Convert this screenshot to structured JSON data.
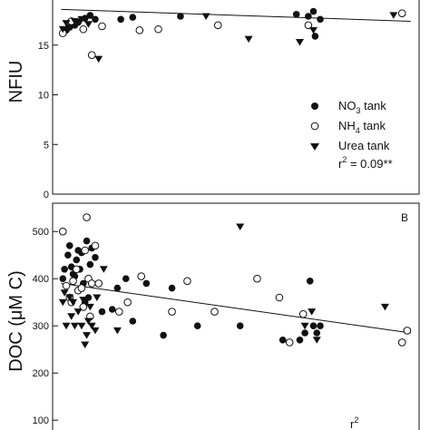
{
  "chart_data": [
    {
      "type": "scatter",
      "panel_label": "",
      "ylabel": "NFIU",
      "ylim": [
        0,
        20
      ],
      "yticks": [
        "0",
        "5",
        "10",
        "15"
      ],
      "series": [
        {
          "name": "NO3 tank",
          "name_main": "NO",
          "name_sub": "3",
          "name_rest": " tank",
          "marker": "filled-circle",
          "points": [
            [
              0.3,
              16.5
            ],
            [
              0.5,
              16.8
            ],
            [
              0.8,
              17.0
            ],
            [
              1.0,
              17.3
            ],
            [
              1.4,
              17.7
            ],
            [
              1.7,
              18.0
            ],
            [
              2.0,
              17.6
            ],
            [
              3.5,
              17.6
            ],
            [
              4.2,
              17.8
            ],
            [
              7.0,
              17.9
            ],
            [
              13.8,
              18.1
            ],
            [
              14.5,
              17.9
            ],
            [
              14.8,
              18.4
            ],
            [
              15.2,
              17.6
            ],
            [
              14.9,
              15.9
            ]
          ]
        },
        {
          "name": "NH4 tank",
          "name_main": "NH",
          "name_sub": "4",
          "name_rest": " tank",
          "marker": "open-circle",
          "points": [
            [
              0.1,
              16.2
            ],
            [
              0.6,
              17.4
            ],
            [
              1.3,
              16.6
            ],
            [
              1.8,
              14.0
            ],
            [
              2.4,
              16.9
            ],
            [
              4.6,
              16.5
            ],
            [
              5.7,
              16.6
            ],
            [
              9.2,
              17.0
            ],
            [
              14.5,
              17.0
            ],
            [
              20.0,
              18.2
            ]
          ]
        },
        {
          "name": "Urea tank",
          "name_main": "Urea tank",
          "name_sub": "",
          "name_rest": "",
          "marker": "triangle",
          "points": [
            [
              0.1,
              16.6
            ],
            [
              0.3,
              17.2
            ],
            [
              0.8,
              17.4
            ],
            [
              1.2,
              17.6
            ],
            [
              1.6,
              17.1
            ],
            [
              2.2,
              13.6
            ],
            [
              8.5,
              17.9
            ],
            [
              11.0,
              15.6
            ],
            [
              14.0,
              15.3
            ],
            [
              14.8,
              16.5
            ],
            [
              19.5,
              18.0
            ]
          ]
        }
      ],
      "regression": {
        "x": [
          0,
          20.5
        ],
        "y": [
          18.6,
          17.4
        ]
      },
      "annotation": {
        "main": "r",
        "sup": "2",
        "rest": " = 0.09**"
      }
    },
    {
      "type": "scatter",
      "panel_label": "B",
      "ylabel": "DOC (μM C)",
      "ylim": [
        60,
        560
      ],
      "yticks": [
        "100",
        "200",
        "300",
        "400",
        "500"
      ],
      "series": [
        {
          "name": "NO3 tank",
          "marker": "filled-circle",
          "points": [
            [
              0.1,
              400
            ],
            [
              0.2,
              420
            ],
            [
              0.4,
              450
            ],
            [
              0.5,
              470
            ],
            [
              0.6,
              425
            ],
            [
              0.7,
              410
            ],
            [
              0.8,
              405
            ],
            [
              0.9,
              440
            ],
            [
              1.0,
              460
            ],
            [
              1.1,
              420
            ],
            [
              1.2,
              455
            ],
            [
              1.3,
              390
            ],
            [
              1.4,
              350
            ],
            [
              1.5,
              480
            ],
            [
              1.6,
              360
            ],
            [
              1.7,
              430
            ],
            [
              1.8,
              465
            ],
            [
              2.0,
              445
            ],
            [
              2.4,
              330
            ],
            [
              3.0,
              335
            ],
            [
              3.3,
              380
            ],
            [
              3.8,
              400
            ],
            [
              4.2,
              310
            ],
            [
              5.0,
              390
            ],
            [
              6.0,
              280
            ],
            [
              6.5,
              380
            ],
            [
              8.0,
              300
            ],
            [
              10.5,
              300
            ],
            [
              13.0,
              270
            ],
            [
              14.0,
              270
            ],
            [
              14.3,
              285
            ],
            [
              14.6,
              395
            ],
            [
              14.8,
              300
            ],
            [
              15.2,
              300
            ],
            [
              15.0,
              285
            ]
          ]
        },
        {
          "name": "NH4 tank",
          "marker": "open-circle",
          "points": [
            [
              0.1,
              500
            ],
            [
              0.3,
              385
            ],
            [
              0.5,
              360
            ],
            [
              0.6,
              350
            ],
            [
              0.7,
              395
            ],
            [
              0.9,
              420
            ],
            [
              1.0,
              375
            ],
            [
              1.2,
              380
            ],
            [
              1.3,
              340
            ],
            [
              1.4,
              460
            ],
            [
              1.5,
              530
            ],
            [
              1.6,
              400
            ],
            [
              1.7,
              320
            ],
            [
              1.8,
              390
            ],
            [
              2.0,
              470
            ],
            [
              2.2,
              390
            ],
            [
              3.4,
              330
            ],
            [
              3.9,
              350
            ],
            [
              4.7,
              405
            ],
            [
              6.5,
              330
            ],
            [
              7.4,
              395
            ],
            [
              9.0,
              330
            ],
            [
              11.5,
              400
            ],
            [
              12.8,
              360
            ],
            [
              13.4,
              265
            ],
            [
              14.2,
              325
            ],
            [
              20.0,
              265
            ],
            [
              20.3,
              290
            ]
          ]
        },
        {
          "name": "Urea tank",
          "marker": "triangle",
          "points": [
            [
              0.1,
              350
            ],
            [
              0.2,
              370
            ],
            [
              0.3,
              300
            ],
            [
              0.5,
              360
            ],
            [
              0.6,
              320
            ],
            [
              0.7,
              350
            ],
            [
              0.8,
              300
            ],
            [
              1.0,
              330
            ],
            [
              1.2,
              300
            ],
            [
              1.3,
              355
            ],
            [
              1.4,
              260
            ],
            [
              1.5,
              280
            ],
            [
              1.6,
              310
            ],
            [
              1.7,
              340
            ],
            [
              1.8,
              300
            ],
            [
              2.0,
              290
            ],
            [
              2.1,
              360
            ],
            [
              2.5,
              420
            ],
            [
              3.3,
              290
            ],
            [
              10.5,
              510
            ],
            [
              14.3,
              300
            ],
            [
              14.7,
              330
            ],
            [
              15.0,
              270
            ],
            [
              19.0,
              340
            ]
          ]
        }
      ],
      "regression": {
        "x": [
          0,
          20.5
        ],
        "y": [
          390,
          285
        ]
      },
      "annotation": {
        "main": "r",
        "sup": "2",
        "rest": ""
      }
    }
  ]
}
